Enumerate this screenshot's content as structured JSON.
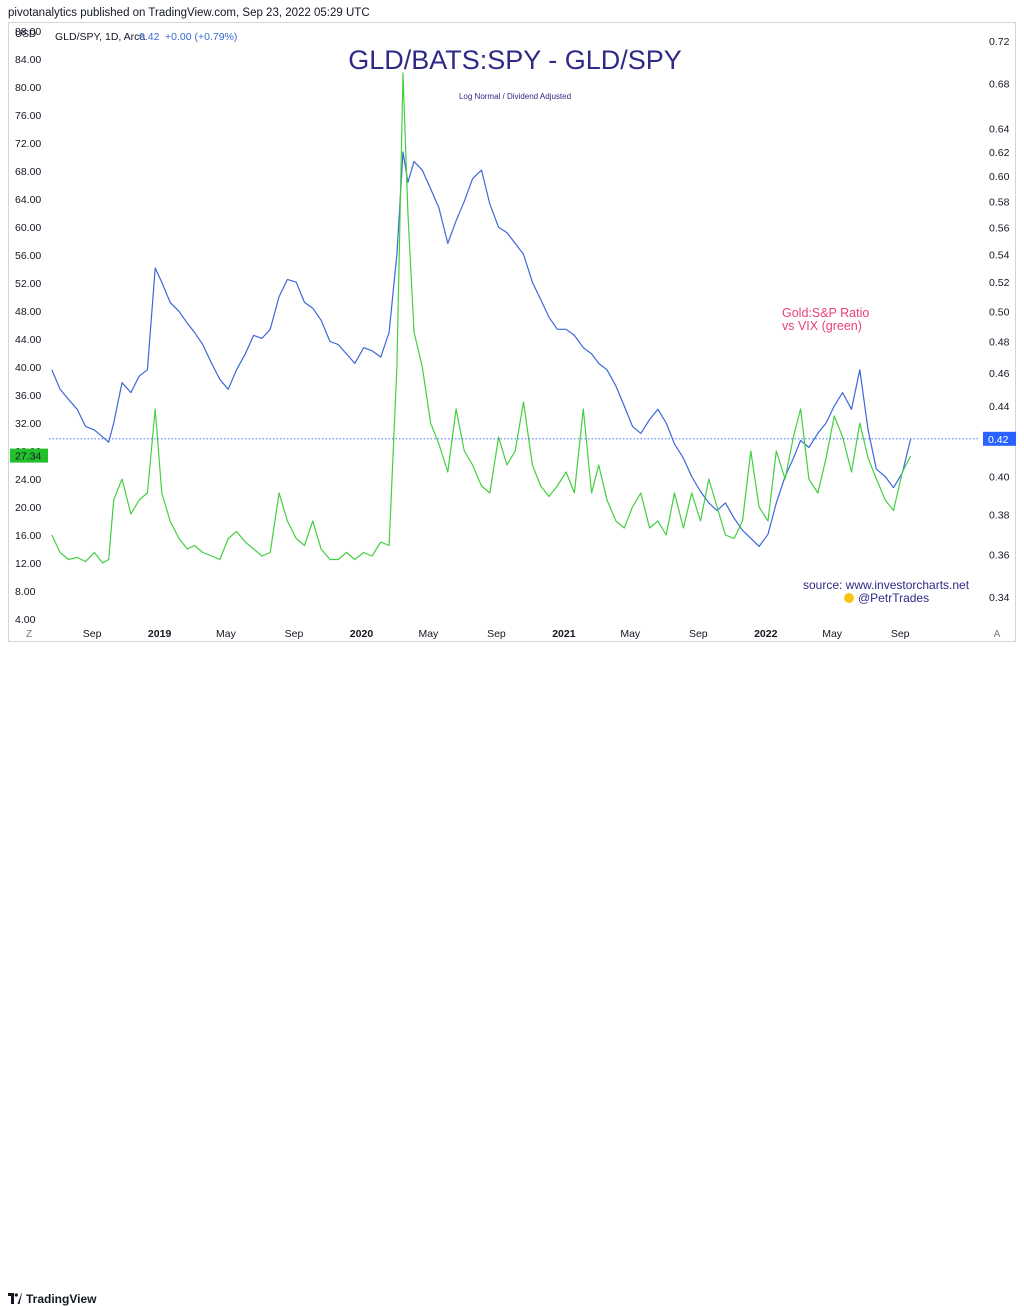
{
  "publisher_line": "pivotanalytics published on TradingView.com, Sep 23, 2022 05:29 UTC",
  "footer_brand": "TradingView",
  "colors": {
    "gold_spy_line": "#3b68d8",
    "vix_line": "#43cf3f",
    "title_color": "#2e2a86",
    "annotation_pink": "#e7407f",
    "source_color": "#2e2a86",
    "left_badge_bg": "#22c02b",
    "right_badge_bg": "#2962ff",
    "price_line": "#2962ff",
    "axis_text": "#131722"
  },
  "icons": [
    "tradingview-logo-icon",
    "emoji-face-icon"
  ],
  "chart_data": {
    "type": "line",
    "title": "GLD/BATS:SPY - GLD/SPY",
    "subtitle": "Log Normal / Dividend Adjusted",
    "legend": {
      "symbol": "GLD/SPY, 1D, Arca",
      "value": "0.42",
      "change": "+0.00 (+0.79%)"
    },
    "left_axis": {
      "unit_label": "USD",
      "ticks": [
        "88.00",
        "84.00",
        "80.00",
        "76.00",
        "72.00",
        "68.00",
        "64.00",
        "60.00",
        "56.00",
        "52.00",
        "48.00",
        "44.00",
        "40.00",
        "36.00",
        "32.00",
        "28.00",
        "24.00",
        "20.00",
        "16.00",
        "12.00",
        "8.00",
        "4.00"
      ],
      "range": [
        4,
        88
      ],
      "current_value_badge": "27.34",
      "current_value": 27.34
    },
    "right_axis": {
      "ticks": [
        "0.72",
        "0.68",
        "0.64",
        "0.62",
        "0.60",
        "0.58",
        "0.56",
        "0.54",
        "0.52",
        "0.50",
        "0.48",
        "0.46",
        "0.44",
        "0.42",
        "0.40",
        "0.38",
        "0.36",
        "0.34"
      ],
      "scale": "log",
      "range": [
        0.33,
        0.73
      ],
      "current_value_badge": "0.42",
      "current_value": 0.4209
    },
    "x_axis": {
      "ticks": [
        "Sep",
        "2019",
        "May",
        "Sep",
        "2020",
        "May",
        "Sep",
        "2021",
        "May",
        "Sep",
        "2022",
        "May",
        "Sep"
      ],
      "range": [
        "2018-06-15",
        "2022-12-20"
      ],
      "tick_dates": [
        "2018-09-01",
        "2019-01-01",
        "2019-05-01",
        "2019-09-01",
        "2020-01-01",
        "2020-05-01",
        "2020-09-01",
        "2021-01-01",
        "2021-05-01",
        "2021-09-01",
        "2022-01-01",
        "2022-05-01",
        "2022-09-01"
      ]
    },
    "axis_buttons": {
      "left": "Z",
      "right": "A"
    },
    "annotation": {
      "line1": "Gold:S&P Ratio",
      "line2": "vs VIX (green)"
    },
    "source": {
      "line1": "source: www.investorcharts.net",
      "line2": "@PetrTrades"
    },
    "series": [
      {
        "name": "GLD/SPY",
        "axis": "right",
        "points": [
          [
            "2018-06-20",
            0.462
          ],
          [
            "2018-07-05",
            0.45
          ],
          [
            "2018-07-20",
            0.444
          ],
          [
            "2018-08-05",
            0.438
          ],
          [
            "2018-08-20",
            0.428
          ],
          [
            "2018-09-05",
            0.426
          ],
          [
            "2018-09-20",
            0.422
          ],
          [
            "2018-10-01",
            0.419
          ],
          [
            "2018-10-10",
            0.43
          ],
          [
            "2018-10-25",
            0.454
          ],
          [
            "2018-11-10",
            0.448
          ],
          [
            "2018-11-25",
            0.458
          ],
          [
            "2018-12-10",
            0.462
          ],
          [
            "2018-12-24",
            0.53
          ],
          [
            "2019-01-05",
            0.52
          ],
          [
            "2019-01-20",
            0.506
          ],
          [
            "2019-02-05",
            0.5
          ],
          [
            "2019-02-20",
            0.492
          ],
          [
            "2019-03-05",
            0.486
          ],
          [
            "2019-03-20",
            0.478
          ],
          [
            "2019-04-05",
            0.466
          ],
          [
            "2019-04-20",
            0.456
          ],
          [
            "2019-05-05",
            0.45
          ],
          [
            "2019-05-20",
            0.462
          ],
          [
            "2019-06-05",
            0.472
          ],
          [
            "2019-06-20",
            0.484
          ],
          [
            "2019-07-05",
            0.482
          ],
          [
            "2019-07-20",
            0.488
          ],
          [
            "2019-08-05",
            0.51
          ],
          [
            "2019-08-20",
            0.522
          ],
          [
            "2019-09-05",
            0.52
          ],
          [
            "2019-09-20",
            0.506
          ],
          [
            "2019-10-05",
            0.502
          ],
          [
            "2019-10-20",
            0.494
          ],
          [
            "2019-11-05",
            0.48
          ],
          [
            "2019-11-20",
            0.478
          ],
          [
            "2019-12-05",
            0.472
          ],
          [
            "2019-12-20",
            0.466
          ],
          [
            "2020-01-05",
            0.476
          ],
          [
            "2020-01-20",
            0.474
          ],
          [
            "2020-02-05",
            0.47
          ],
          [
            "2020-02-20",
            0.486
          ],
          [
            "2020-03-05",
            0.54
          ],
          [
            "2020-03-16",
            0.62
          ],
          [
            "2020-03-25",
            0.595
          ],
          [
            "2020-04-05",
            0.612
          ],
          [
            "2020-04-20",
            0.605
          ],
          [
            "2020-05-05",
            0.59
          ],
          [
            "2020-05-20",
            0.575
          ],
          [
            "2020-06-05",
            0.548
          ],
          [
            "2020-06-20",
            0.565
          ],
          [
            "2020-07-05",
            0.58
          ],
          [
            "2020-07-20",
            0.598
          ],
          [
            "2020-08-05",
            0.605
          ],
          [
            "2020-08-20",
            0.578
          ],
          [
            "2020-09-05",
            0.56
          ],
          [
            "2020-09-20",
            0.556
          ],
          [
            "2020-10-05",
            0.548
          ],
          [
            "2020-10-20",
            0.54
          ],
          [
            "2020-11-05",
            0.52
          ],
          [
            "2020-11-20",
            0.508
          ],
          [
            "2020-12-05",
            0.496
          ],
          [
            "2020-12-20",
            0.488
          ],
          [
            "2021-01-05",
            0.488
          ],
          [
            "2021-01-20",
            0.484
          ],
          [
            "2021-02-05",
            0.476
          ],
          [
            "2021-02-20",
            0.472
          ],
          [
            "2021-03-05",
            0.466
          ],
          [
            "2021-03-20",
            0.462
          ],
          [
            "2021-04-05",
            0.452
          ],
          [
            "2021-04-20",
            0.44
          ],
          [
            "2021-05-05",
            0.428
          ],
          [
            "2021-05-20",
            0.424
          ],
          [
            "2021-06-05",
            0.432
          ],
          [
            "2021-06-20",
            0.438
          ],
          [
            "2021-07-05",
            0.43
          ],
          [
            "2021-07-20",
            0.418
          ],
          [
            "2021-08-05",
            0.41
          ],
          [
            "2021-08-20",
            0.4
          ],
          [
            "2021-09-05",
            0.392
          ],
          [
            "2021-09-20",
            0.386
          ],
          [
            "2021-10-05",
            0.382
          ],
          [
            "2021-10-20",
            0.386
          ],
          [
            "2021-11-05",
            0.378
          ],
          [
            "2021-11-20",
            0.372
          ],
          [
            "2021-12-05",
            0.368
          ],
          [
            "2021-12-20",
            0.364
          ],
          [
            "2022-01-05",
            0.37
          ],
          [
            "2022-01-20",
            0.386
          ],
          [
            "2022-02-05",
            0.4
          ],
          [
            "2022-02-20",
            0.41
          ],
          [
            "2022-03-05",
            0.42
          ],
          [
            "2022-03-20",
            0.416
          ],
          [
            "2022-04-05",
            0.424
          ],
          [
            "2022-04-20",
            0.43
          ],
          [
            "2022-05-05",
            0.44
          ],
          [
            "2022-05-20",
            0.448
          ],
          [
            "2022-06-05",
            0.438
          ],
          [
            "2022-06-20",
            0.462
          ],
          [
            "2022-07-05",
            0.426
          ],
          [
            "2022-07-20",
            0.404
          ],
          [
            "2022-08-05",
            0.4
          ],
          [
            "2022-08-20",
            0.394
          ],
          [
            "2022-09-05",
            0.402
          ],
          [
            "2022-09-20",
            0.421
          ]
        ]
      },
      {
        "name": "VIX",
        "axis": "left",
        "points": [
          [
            "2018-06-20",
            16.0
          ],
          [
            "2018-07-05",
            13.5
          ],
          [
            "2018-07-20",
            12.5
          ],
          [
            "2018-08-05",
            12.8
          ],
          [
            "2018-08-20",
            12.2
          ],
          [
            "2018-09-05",
            13.5
          ],
          [
            "2018-09-20",
            12.0
          ],
          [
            "2018-10-01",
            12.5
          ],
          [
            "2018-10-10",
            21.0
          ],
          [
            "2018-10-25",
            24.0
          ],
          [
            "2018-11-10",
            19.0
          ],
          [
            "2018-11-25",
            21.0
          ],
          [
            "2018-12-10",
            22.0
          ],
          [
            "2018-12-24",
            34.0
          ],
          [
            "2019-01-05",
            22.0
          ],
          [
            "2019-01-20",
            18.0
          ],
          [
            "2019-02-05",
            15.5
          ],
          [
            "2019-02-20",
            14.0
          ],
          [
            "2019-03-05",
            14.5
          ],
          [
            "2019-03-20",
            13.5
          ],
          [
            "2019-04-05",
            13.0
          ],
          [
            "2019-04-20",
            12.5
          ],
          [
            "2019-05-05",
            15.5
          ],
          [
            "2019-05-20",
            16.5
          ],
          [
            "2019-06-05",
            15.0
          ],
          [
            "2019-06-20",
            14.0
          ],
          [
            "2019-07-05",
            13.0
          ],
          [
            "2019-07-20",
            13.5
          ],
          [
            "2019-08-05",
            22.0
          ],
          [
            "2019-08-20",
            18.0
          ],
          [
            "2019-09-05",
            15.5
          ],
          [
            "2019-09-20",
            14.5
          ],
          [
            "2019-10-05",
            18.0
          ],
          [
            "2019-10-20",
            14.0
          ],
          [
            "2019-11-05",
            12.5
          ],
          [
            "2019-11-20",
            12.5
          ],
          [
            "2019-12-05",
            13.5
          ],
          [
            "2019-12-20",
            12.5
          ],
          [
            "2020-01-05",
            13.5
          ],
          [
            "2020-01-20",
            13.0
          ],
          [
            "2020-02-05",
            15.0
          ],
          [
            "2020-02-20",
            14.5
          ],
          [
            "2020-03-05",
            40.0
          ],
          [
            "2020-03-16",
            82.0
          ],
          [
            "2020-03-25",
            62.0
          ],
          [
            "2020-04-05",
            45.0
          ],
          [
            "2020-04-20",
            40.0
          ],
          [
            "2020-05-05",
            32.0
          ],
          [
            "2020-05-20",
            29.0
          ],
          [
            "2020-06-05",
            25.0
          ],
          [
            "2020-06-20",
            34.0
          ],
          [
            "2020-07-05",
            28.0
          ],
          [
            "2020-07-20",
            26.0
          ],
          [
            "2020-08-05",
            23.0
          ],
          [
            "2020-08-20",
            22.0
          ],
          [
            "2020-09-05",
            30.0
          ],
          [
            "2020-09-20",
            26.0
          ],
          [
            "2020-10-05",
            28.0
          ],
          [
            "2020-10-20",
            35.0
          ],
          [
            "2020-11-05",
            26.0
          ],
          [
            "2020-11-20",
            23.0
          ],
          [
            "2020-12-05",
            21.5
          ],
          [
            "2020-12-20",
            23.0
          ],
          [
            "2021-01-05",
            25.0
          ],
          [
            "2021-01-20",
            22.0
          ],
          [
            "2021-02-05",
            34.0
          ],
          [
            "2021-02-20",
            22.0
          ],
          [
            "2021-03-05",
            26.0
          ],
          [
            "2021-03-20",
            21.0
          ],
          [
            "2021-04-05",
            18.0
          ],
          [
            "2021-04-20",
            17.0
          ],
          [
            "2021-05-05",
            20.0
          ],
          [
            "2021-05-20",
            22.0
          ],
          [
            "2021-06-05",
            17.0
          ],
          [
            "2021-06-20",
            18.0
          ],
          [
            "2021-07-05",
            16.0
          ],
          [
            "2021-07-20",
            22.0
          ],
          [
            "2021-08-05",
            17.0
          ],
          [
            "2021-08-20",
            22.0
          ],
          [
            "2021-09-05",
            18.0
          ],
          [
            "2021-09-20",
            24.0
          ],
          [
            "2021-10-05",
            20.0
          ],
          [
            "2021-10-20",
            16.0
          ],
          [
            "2021-11-05",
            15.5
          ],
          [
            "2021-11-20",
            18.0
          ],
          [
            "2021-12-05",
            28.0
          ],
          [
            "2021-12-20",
            20.0
          ],
          [
            "2022-01-05",
            18.0
          ],
          [
            "2022-01-20",
            28.0
          ],
          [
            "2022-02-05",
            24.0
          ],
          [
            "2022-02-20",
            30.0
          ],
          [
            "2022-03-05",
            34.0
          ],
          [
            "2022-03-20",
            24.0
          ],
          [
            "2022-04-05",
            22.0
          ],
          [
            "2022-04-20",
            27.0
          ],
          [
            "2022-05-05",
            33.0
          ],
          [
            "2022-05-20",
            30.0
          ],
          [
            "2022-06-05",
            25.0
          ],
          [
            "2022-06-20",
            32.0
          ],
          [
            "2022-07-05",
            27.0
          ],
          [
            "2022-07-20",
            24.0
          ],
          [
            "2022-08-05",
            21.0
          ],
          [
            "2022-08-20",
            19.5
          ],
          [
            "2022-09-05",
            25.0
          ],
          [
            "2022-09-20",
            27.3
          ]
        ]
      }
    ]
  }
}
